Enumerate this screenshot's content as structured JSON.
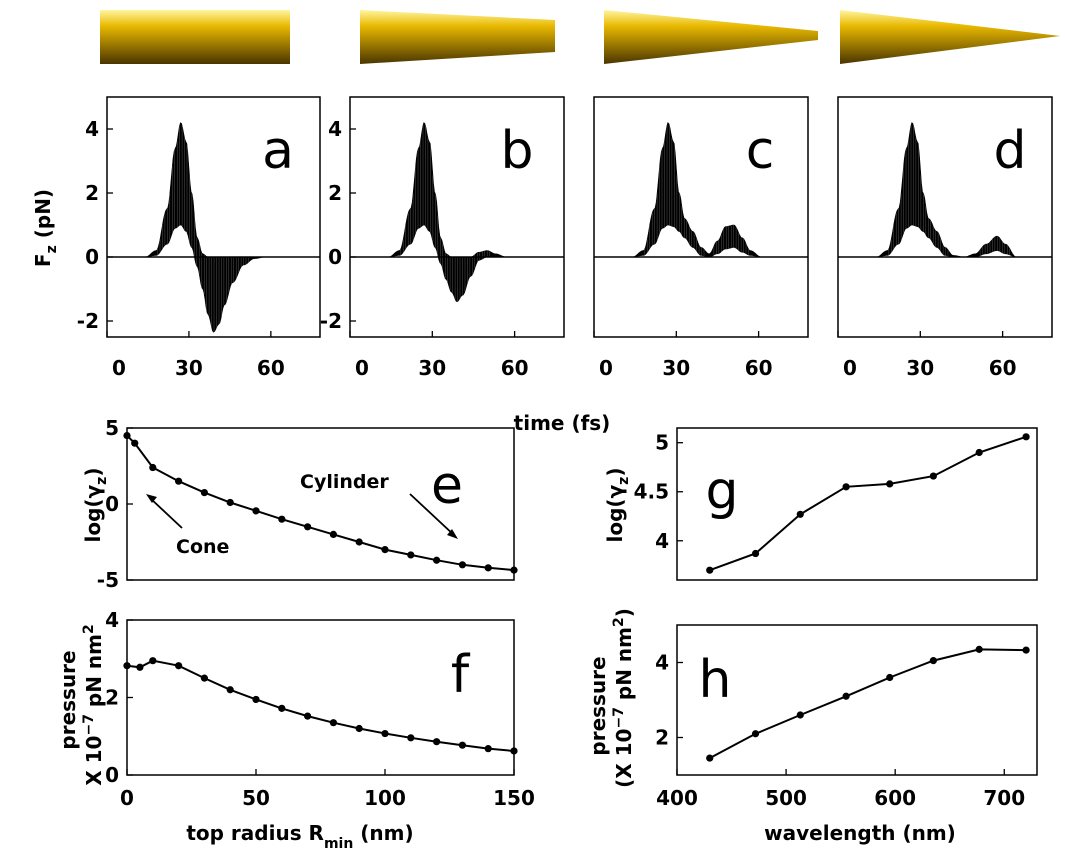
{
  "shared": {
    "time_xlabel": "time (fs)",
    "fz_ylabel": "F",
    "fz_ylabel_sub": "z",
    "fz_ylabel_unit": "(pN)"
  },
  "colors": {
    "gold_light": "#fff6a0",
    "gold_mid": "#e8b800",
    "gold_dark": "#4a3500",
    "trace": "#000000"
  },
  "chart_data": [
    {
      "id": "a",
      "type": "line",
      "panel_label": "a",
      "xlim": [
        0,
        78
      ],
      "ylim": [
        -2.5,
        5
      ],
      "xticks": [
        0,
        30,
        60
      ],
      "yticks": [
        -2,
        0,
        2,
        4
      ],
      "envelope": {
        "x": [
          0,
          14,
          18,
          22,
          25,
          27,
          29,
          31,
          33,
          35,
          37,
          39,
          41,
          43,
          46,
          50,
          54,
          58,
          78
        ],
        "upper": [
          0,
          0,
          0.2,
          1.5,
          3.4,
          4.2,
          3.6,
          2.0,
          0.6,
          0.1,
          0,
          0,
          0,
          0,
          0,
          0,
          0,
          0,
          0
        ],
        "lower": [
          0,
          0,
          0.05,
          0.4,
          0.9,
          1.0,
          0.8,
          0.3,
          -0.3,
          -1.0,
          -1.8,
          -2.35,
          -2.1,
          -1.5,
          -0.8,
          -0.25,
          -0.05,
          0,
          0
        ]
      }
    },
    {
      "id": "b",
      "type": "line",
      "panel_label": "b",
      "xlim": [
        0,
        78
      ],
      "ylim": [
        -2.5,
        5
      ],
      "xticks": [
        0,
        30,
        60
      ],
      "yticks": [
        -2,
        0,
        2,
        4
      ],
      "envelope": {
        "x": [
          0,
          14,
          18,
          22,
          25,
          27,
          29,
          31,
          33,
          35,
          37,
          39,
          41,
          44,
          47,
          50,
          53,
          57,
          78
        ],
        "upper": [
          0,
          0,
          0.2,
          1.5,
          3.4,
          4.2,
          3.6,
          2.0,
          0.6,
          0.1,
          0,
          0,
          0,
          0,
          0.15,
          0.2,
          0.1,
          0,
          0
        ],
        "lower": [
          0,
          0,
          0.05,
          0.4,
          0.9,
          1.0,
          0.8,
          0.3,
          -0.2,
          -0.7,
          -1.1,
          -1.4,
          -1.2,
          -0.6,
          -0.1,
          0,
          0,
          0,
          0
        ]
      }
    },
    {
      "id": "c",
      "type": "line",
      "panel_label": "c",
      "xlim": [
        0,
        78
      ],
      "ylim": [
        -2.5,
        5
      ],
      "xticks": [
        0,
        30,
        60
      ],
      "yticks": [],
      "envelope": {
        "x": [
          0,
          14,
          18,
          22,
          25,
          27,
          29,
          31,
          33,
          36,
          39,
          42,
          45,
          48,
          51,
          54,
          57,
          61,
          78
        ],
        "upper": [
          0,
          0,
          0.2,
          1.5,
          3.4,
          4.2,
          3.6,
          2.0,
          1.2,
          0.8,
          0.3,
          0.1,
          0.5,
          0.95,
          1.0,
          0.6,
          0.2,
          0,
          0
        ],
        "lower": [
          0,
          0,
          0.05,
          0.4,
          0.9,
          1.0,
          0.95,
          0.8,
          0.6,
          0.3,
          0.05,
          0,
          0.1,
          0.25,
          0.3,
          0.15,
          0.05,
          0,
          0
        ]
      }
    },
    {
      "id": "d",
      "type": "line",
      "panel_label": "d",
      "xlim": [
        0,
        78
      ],
      "ylim": [
        -2.5,
        5
      ],
      "xticks": [
        0,
        30,
        60
      ],
      "yticks": [],
      "envelope": {
        "x": [
          0,
          14,
          18,
          22,
          25,
          27,
          29,
          31,
          33,
          36,
          39,
          42,
          46,
          50,
          54,
          58,
          61,
          65,
          78
        ],
        "upper": [
          0,
          0,
          0.2,
          1.5,
          3.4,
          4.2,
          3.6,
          2.0,
          1.2,
          0.8,
          0.3,
          0.05,
          0,
          0.1,
          0.4,
          0.65,
          0.4,
          0,
          0
        ],
        "lower": [
          0,
          0,
          0.05,
          0.4,
          0.9,
          1.0,
          0.95,
          0.8,
          0.6,
          0.3,
          0.05,
          0,
          0,
          0,
          0.1,
          0.2,
          0.1,
          0,
          0
        ]
      }
    },
    {
      "id": "e",
      "type": "line",
      "panel_label": "e",
      "ylabel": "log(γ",
      "ylabel_sub": "z",
      "ylabel_close": ")",
      "xlim": [
        0,
        150
      ],
      "ylim": [
        -5,
        5
      ],
      "xticks": [],
      "yticks": [
        -5,
        0,
        5
      ],
      "x": [
        0,
        3,
        10,
        20,
        30,
        40,
        50,
        60,
        70,
        80,
        90,
        100,
        110,
        120,
        130,
        140,
        150
      ],
      "y": [
        4.5,
        4.0,
        2.4,
        1.5,
        0.75,
        0.1,
        -0.45,
        -1.0,
        -1.5,
        -2.0,
        -2.5,
        -3.0,
        -3.35,
        -3.7,
        -4.0,
        -4.2,
        -4.35
      ],
      "annotations": [
        {
          "text": "Cylinder"
        },
        {
          "text": "Cone"
        }
      ]
    },
    {
      "id": "f",
      "type": "line",
      "panel_label": "f",
      "ylabel": "pressure",
      "ylabel2_pre": "X 10",
      "ylabel2_sup": "−7",
      "ylabel2_post": " pN nm",
      "ylabel2_sup2": "2",
      "xlabel": "top radius R",
      "xlabel_sub": "min",
      "xlabel_post": " (nm)",
      "xlim": [
        0,
        150
      ],
      "ylim": [
        0,
        4
      ],
      "xticks": [
        0,
        50,
        100,
        150
      ],
      "yticks": [
        0,
        2,
        4
      ],
      "x": [
        0,
        5,
        10,
        20,
        30,
        40,
        50,
        60,
        70,
        80,
        90,
        100,
        110,
        120,
        130,
        140,
        150
      ],
      "y": [
        2.82,
        2.78,
        2.95,
        2.82,
        2.5,
        2.2,
        1.95,
        1.72,
        1.52,
        1.35,
        1.2,
        1.07,
        0.96,
        0.86,
        0.77,
        0.68,
        0.62
      ]
    },
    {
      "id": "g",
      "type": "line",
      "panel_label": "g",
      "ylabel": "log(γ",
      "ylabel_sub": "z",
      "ylabel_close": ")",
      "xlim": [
        400,
        730
      ],
      "ylim": [
        3.6,
        5.15
      ],
      "xticks": [],
      "yticks": [
        4,
        4.5,
        5
      ],
      "x": [
        430,
        472,
        513,
        555,
        595,
        635,
        677,
        720
      ],
      "y": [
        3.7,
        3.87,
        4.27,
        4.55,
        4.58,
        4.66,
        4.9,
        5.06
      ]
    },
    {
      "id": "h",
      "type": "line",
      "panel_label": "h",
      "ylabel": "pressure",
      "ylabel2_pre": "(X 10",
      "ylabel2_sup": "−7",
      "ylabel2_post": " pN nm",
      "ylabel2_sup2": "2",
      "ylabel2_close": ")",
      "xlabel": "wavelength (nm)",
      "xlim": [
        400,
        730
      ],
      "ylim": [
        1,
        5
      ],
      "xticks": [
        400,
        500,
        600,
        700
      ],
      "yticks": [
        2,
        4
      ],
      "x": [
        430,
        472,
        513,
        555,
        595,
        635,
        677,
        720
      ],
      "y": [
        1.45,
        2.1,
        2.6,
        3.1,
        3.6,
        4.05,
        4.35,
        4.33
      ]
    }
  ]
}
